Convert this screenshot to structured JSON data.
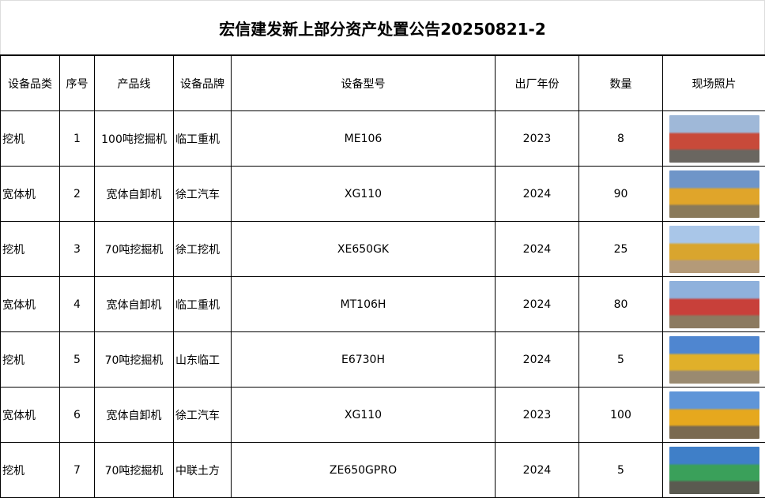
{
  "title": "宏信建发新上部分资产处置公告20250821-2",
  "headers": [
    "设备品类",
    "序号",
    "产品线",
    "设备品牌",
    "设备型号",
    "出厂年份",
    "数量",
    "现场照片"
  ],
  "rows": [
    {
      "category": "挖机",
      "no": "1",
      "line": "100吨挖掘机",
      "brand": "临工重机",
      "model": "ME106",
      "year": "2023",
      "qty": "8",
      "photo": "excavator-red-photo",
      "colors": [
        "#9fb8d8",
        "#c84a3a",
        "#6a6660"
      ]
    },
    {
      "category": "宽体机",
      "no": "2",
      "line": "宽体自卸机",
      "brand": "徐工汽车",
      "model": "XG110",
      "year": "2024",
      "qty": "90",
      "photo": "dump-truck-yellow-photo",
      "colors": [
        "#6f95c8",
        "#e0a52a",
        "#8a7a5a"
      ]
    },
    {
      "category": "挖机",
      "no": "3",
      "line": "70吨挖掘机",
      "brand": "徐工挖机",
      "model": "XE650GK",
      "year": "2024",
      "qty": "25",
      "photo": "excavator-yellow-photo",
      "colors": [
        "#a9c6e8",
        "#d9a52e",
        "#b49a78"
      ]
    },
    {
      "category": "宽体机",
      "no": "4",
      "line": "宽体自卸机",
      "brand": "临工重机",
      "model": "MT106H",
      "year": "2024",
      "qty": "80",
      "photo": "dump-truck-red-photo",
      "colors": [
        "#8fb1dc",
        "#c8403a",
        "#8c7a60"
      ]
    },
    {
      "category": "挖机",
      "no": "5",
      "line": "70吨挖掘机",
      "brand": "山东临工",
      "model": "E6730H",
      "year": "2024",
      "qty": "5",
      "photo": "excavator-yellow-photo",
      "colors": [
        "#4f86d0",
        "#e0b02a",
        "#9a8a70"
      ]
    },
    {
      "category": "宽体机",
      "no": "6",
      "line": "宽体自卸机",
      "brand": "徐工汽车",
      "model": "XG110",
      "year": "2023",
      "qty": "100",
      "photo": "dump-truck-yellow-photo",
      "colors": [
        "#5f95d8",
        "#e6a81e",
        "#7a6a50"
      ]
    },
    {
      "category": "挖机",
      "no": "7",
      "line": "70吨挖掘机",
      "brand": "中联土方",
      "model": "ZE650GPRO",
      "year": "2024",
      "qty": "5",
      "photo": "excavator-green-photo",
      "colors": [
        "#3f7fc8",
        "#3aa05a",
        "#5a5a50"
      ]
    }
  ]
}
